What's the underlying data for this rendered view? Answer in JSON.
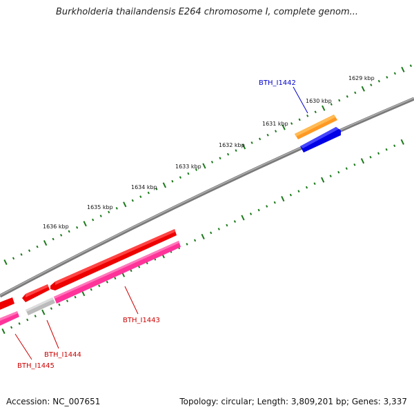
{
  "title": "Burkholderia thailandensis E264 chromosome I, complete genom...",
  "kbp_labels": [
    "1629 kbp",
    "1630 kbp",
    "1631 kbp",
    "1632 kbp",
    "1633 kbp",
    "1634 kbp",
    "1635 kbp",
    "1636 kbp"
  ],
  "genes": [
    {
      "label": "BTH_I1442",
      "color": "#0000cc"
    },
    {
      "label": "BTH_I1443",
      "color": "#cc0000"
    },
    {
      "label": "BTH_I1444",
      "color": "#cc0000"
    },
    {
      "label": "BTH_I1445",
      "color": "#cc0000"
    }
  ],
  "colors": {
    "backbone": "#888888",
    "ticks": "#1a7a1a",
    "forward_cds": "#ee0000",
    "reverse_cds": "#ff3399",
    "blue_feature": "#0000ee",
    "orange_feature": "#ff8800",
    "grey_feature": "#bbbbbb"
  },
  "footer": {
    "accession": "Accession: NC_007651",
    "topology": "Topology: circular; Length: 3,809,201 bp; Genes: 3,337"
  }
}
